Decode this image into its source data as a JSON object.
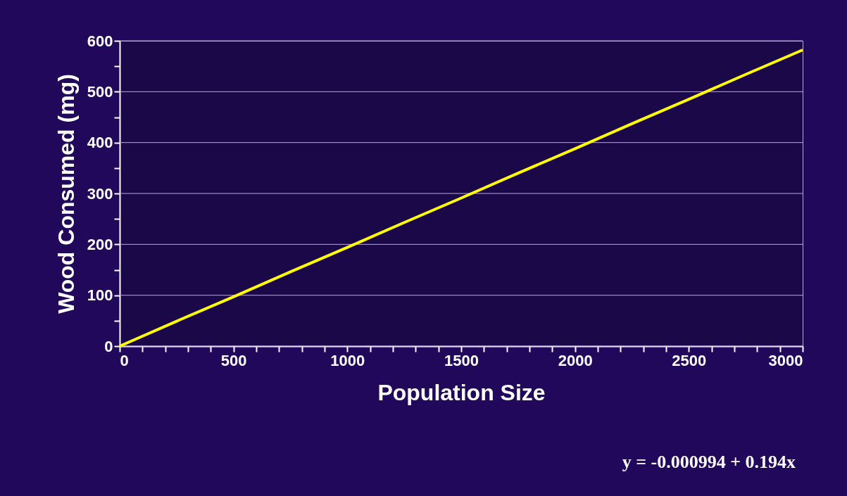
{
  "chart_data": {
    "type": "line",
    "xlabel": "Population Size",
    "ylabel": "Wood Consumed (mg)",
    "x": [
      0,
      250,
      500,
      750,
      1000,
      1250,
      1500,
      1750,
      2000,
      2250,
      2500,
      2750,
      3000
    ],
    "series": [
      {
        "color": "#ffff00",
        "values": [
          0,
          49,
          97,
          146,
          194,
          243,
          291,
          340,
          388,
          437,
          485,
          534,
          582
        ]
      }
    ],
    "xlim": [
      0,
      3000
    ],
    "xticks": [
      0,
      {
        "value": 100,
        "label": null
      },
      {
        "value": 200,
        "label": null
      },
      {
        "value": 300,
        "label": null
      },
      {
        "value": 400,
        "label": null
      },
      500,
      {
        "value": 600,
        "label": null
      },
      {
        "value": 700,
        "label": null
      },
      {
        "value": 800,
        "label": null
      },
      {
        "value": 900,
        "label": null
      },
      1000,
      {
        "value": 1100,
        "label": null
      },
      {
        "value": 1200,
        "label": null
      },
      {
        "value": 1300,
        "label": null
      },
      {
        "value": 1400,
        "label": null
      },
      1500,
      {
        "value": 1600,
        "label": null
      },
      {
        "value": 1700,
        "label": null
      },
      {
        "value": 1800,
        "label": null
      },
      {
        "value": 1900,
        "label": null
      },
      2000,
      {
        "value": 2100,
        "label": null
      },
      {
        "value": 2200,
        "label": null
      },
      {
        "value": 2300,
        "label": null
      },
      {
        "value": 2400,
        "label": null
      },
      2500,
      {
        "value": 2600,
        "label": null
      },
      {
        "value": 2700,
        "label": null
      },
      {
        "value": 2800,
        "label": null
      },
      {
        "value": 2900,
        "label": null
      },
      3000
    ],
    "ylim": [
      0,
      600
    ],
    "yticks": [
      0,
      {
        "value": 50,
        "label": null
      },
      100,
      {
        "value": 150,
        "label": null
      },
      200,
      {
        "value": 250,
        "label": null
      },
      300,
      {
        "value": 350,
        "label": null
      },
      400,
      {
        "value": 450,
        "label": null
      },
      500,
      {
        "value": 550,
        "label": null
      },
      600
    ],
    "grid": "y",
    "marker": "none",
    "line_style": "solid",
    "annotations": [
      "y = -0.000994 + 0.194x"
    ]
  }
}
